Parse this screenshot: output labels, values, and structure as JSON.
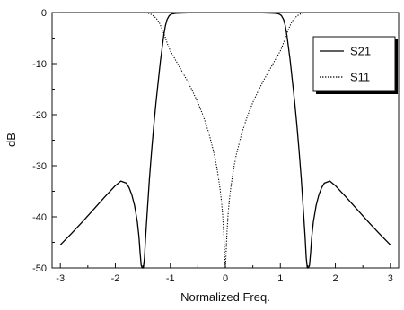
{
  "chart_data": {
    "type": "line",
    "title": "",
    "xlabel": "Normalized Freq.",
    "ylabel": "dB",
    "xlim": [
      -3.15,
      3.15
    ],
    "ylim": [
      -50,
      0
    ],
    "xticks": [
      -3,
      -2,
      -1,
      0,
      1,
      2,
      3
    ],
    "yticks": [
      0,
      -10,
      -20,
      -30,
      -40,
      -50
    ],
    "xtick_labels": [
      "-3",
      "-2",
      "-1",
      "0",
      "1",
      "2",
      "3"
    ],
    "ytick_labels": [
      "0",
      "-10",
      "-20",
      "-30",
      "-40",
      "-50"
    ],
    "grid": false,
    "legend_position": "top-right",
    "series": [
      {
        "name": "S21",
        "style": "solid",
        "color": "#000000",
        "x": [
          -3,
          -2.8,
          -2.6,
          -2.4,
          -2.2,
          -2.0,
          -1.9,
          -1.8,
          -1.75,
          -1.7,
          -1.65,
          -1.6,
          -1.57,
          -1.55,
          -1.53,
          -1.51,
          -1.5,
          -1.49,
          -1.47,
          -1.45,
          -1.42,
          -1.38,
          -1.34,
          -1.3,
          -1.26,
          -1.22,
          -1.18,
          -1.15,
          -1.12,
          -1.09,
          -1.06,
          -1.02,
          -0.98,
          -0.9,
          -0.8,
          -0.6,
          -0.3,
          0,
          0.3,
          0.6,
          0.8,
          0.9,
          0.98,
          1.02,
          1.06,
          1.09,
          1.12,
          1.15,
          1.18,
          1.22,
          1.26,
          1.3,
          1.34,
          1.38,
          1.42,
          1.45,
          1.47,
          1.49,
          1.5,
          1.51,
          1.53,
          1.55,
          1.57,
          1.6,
          1.65,
          1.7,
          1.75,
          1.8,
          1.9,
          2.0,
          2.2,
          2.4,
          2.6,
          2.8,
          3.0
        ],
        "y": [
          -45.5,
          -43.3,
          -41.0,
          -38.6,
          -36.2,
          -33.9,
          -33.0,
          -33.4,
          -34.3,
          -35.7,
          -37.8,
          -41.0,
          -44.0,
          -47.0,
          -49.5,
          -50,
          -50,
          -50,
          -48.0,
          -44.0,
          -39.0,
          -32.5,
          -27.0,
          -22.0,
          -17.5,
          -13.5,
          -9.5,
          -7.0,
          -4.5,
          -2.6,
          -1.4,
          -0.6,
          -0.3,
          -0.15,
          -0.1,
          -0.05,
          -0.05,
          -0.05,
          -0.05,
          -0.05,
          -0.1,
          -0.15,
          -0.3,
          -0.6,
          -1.4,
          -2.6,
          -4.5,
          -7.0,
          -9.5,
          -13.5,
          -17.5,
          -22.0,
          -27.0,
          -32.5,
          -39.0,
          -44.0,
          -48.0,
          -50,
          -50,
          -50,
          -49.5,
          -47.0,
          -44.0,
          -41.0,
          -37.8,
          -35.7,
          -34.3,
          -33.4,
          -33.0,
          -33.9,
          -36.2,
          -38.6,
          -41.0,
          -43.3,
          -45.5
        ]
      },
      {
        "name": "S11",
        "style": "dotted",
        "color": "#000000",
        "x": [
          -3,
          -2.0,
          -1.6,
          -1.5,
          -1.45,
          -1.4,
          -1.35,
          -1.3,
          -1.25,
          -1.2,
          -1.15,
          -1.1,
          -1.05,
          -1.0,
          -0.9,
          -0.8,
          -0.7,
          -0.6,
          -0.5,
          -0.4,
          -0.3,
          -0.2,
          -0.15,
          -0.1,
          -0.07,
          -0.05,
          -0.03,
          -0.01,
          0,
          0.01,
          0.03,
          0.05,
          0.07,
          0.1,
          0.15,
          0.2,
          0.3,
          0.4,
          0.5,
          0.6,
          0.7,
          0.8,
          0.9,
          1.0,
          1.05,
          1.1,
          1.15,
          1.2,
          1.25,
          1.3,
          1.35,
          1.4,
          1.45,
          1.5,
          1.6,
          2.0,
          3.0
        ],
        "y": [
          0,
          0,
          0,
          0,
          -0.05,
          -0.15,
          -0.35,
          -0.7,
          -1.2,
          -2.0,
          -3.2,
          -4.6,
          -6.2,
          -7.5,
          -9.4,
          -11.3,
          -13.2,
          -15.3,
          -17.6,
          -20.3,
          -23.6,
          -27.8,
          -30.6,
          -34.2,
          -37.0,
          -39.5,
          -43.0,
          -48.0,
          -50,
          -48.0,
          -43.0,
          -39.5,
          -37.0,
          -34.2,
          -30.6,
          -27.8,
          -23.6,
          -20.3,
          -17.6,
          -15.3,
          -13.2,
          -11.3,
          -9.4,
          -7.5,
          -6.2,
          -4.6,
          -3.2,
          -2.0,
          -1.2,
          -0.7,
          -0.35,
          -0.15,
          -0.05,
          0,
          0,
          0,
          0
        ]
      }
    ]
  }
}
